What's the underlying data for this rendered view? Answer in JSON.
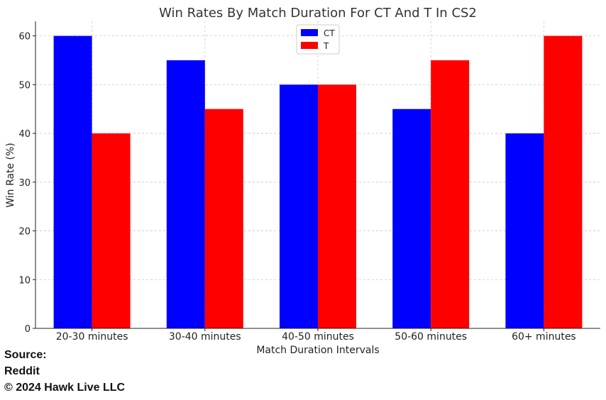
{
  "chart_data": {
    "type": "bar",
    "title": "Win Rates By Match Duration For CT And T In CS2",
    "xlabel": "Match Duration Intervals",
    "ylabel": "Win Rate (%)",
    "categories": [
      "20-30 minutes",
      "30-40 minutes",
      "40-50 minutes",
      "50-60 minutes",
      "60+ minutes"
    ],
    "series": [
      {
        "name": "CT",
        "color": "#0000ff",
        "values": [
          60,
          55,
          50,
          45,
          40
        ]
      },
      {
        "name": "T",
        "color": "#ff0000",
        "values": [
          40,
          45,
          50,
          55,
          60
        ]
      }
    ],
    "ylim": [
      0,
      63
    ],
    "yticks": [
      0,
      10,
      20,
      30,
      40,
      50,
      60
    ],
    "grid": true,
    "legend_position": "top-center"
  },
  "source": {
    "line1": "Source:",
    "line2": "Reddit",
    "line3": "© 2024 Hawk Live LLC"
  }
}
